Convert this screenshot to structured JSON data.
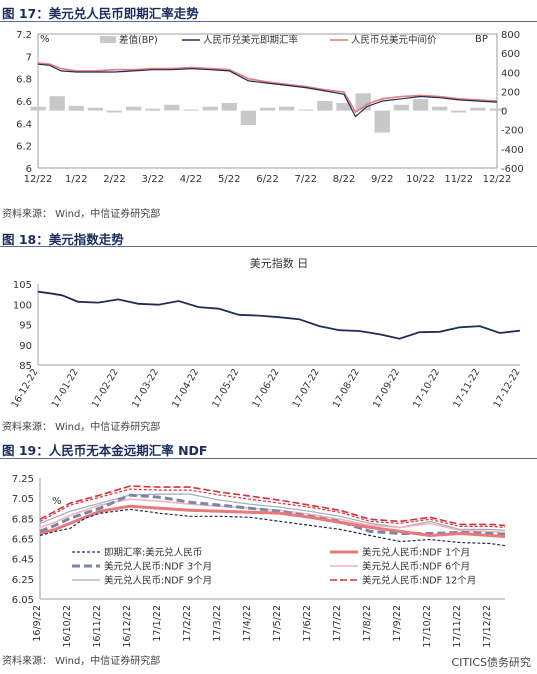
{
  "figures": [
    {
      "title": "图 17：美元兑人民币即期汇率走势",
      "source": "资料来源：  Wind，中信证券研究部"
    },
    {
      "title": "图 18：美元指数走势",
      "source": "资料来源：  Wind，中信证券研究部"
    },
    {
      "title": "图 19：人民币无本金远期汇率 NDF",
      "source": "资料来源：  Wind，中信证券研究部"
    }
  ],
  "watermark": "CITICS债务研究",
  "chart_data": [
    {
      "type": "line",
      "ylabel": "%",
      "y2label": "BP",
      "ylim": [
        6,
        7.2
      ],
      "y2lim": [
        -600,
        800
      ],
      "yticks": [
        "6",
        "6.2",
        "6.4",
        "6.6",
        "6.8",
        "7",
        "7.2"
      ],
      "y2ticks": [
        "-600",
        "-400",
        "-200",
        "0",
        "200",
        "400",
        "600",
        "800"
      ],
      "xticks": [
        "12/22",
        "1/22",
        "2/22",
        "3/22",
        "4/22",
        "5/22",
        "6/22",
        "7/22",
        "8/22",
        "9/22",
        "10/22",
        "11/22",
        "12/22"
      ],
      "legend_position": "top",
      "colors": {
        "spot": "#1f2d5a",
        "mid": "#e8787a",
        "spread": "#c8c8c8"
      },
      "series": [
        {
          "name": "差值(BP)",
          "axis": "right",
          "x": [
            0,
            0.5,
            1,
            1.5,
            2,
            2.5,
            3,
            3.5,
            4,
            4.5,
            5,
            5.5,
            6,
            6.5,
            7,
            7.5,
            8,
            8.5,
            9,
            9.5,
            10,
            10.5,
            11,
            11.5,
            12
          ],
          "values": [
            40,
            150,
            50,
            30,
            -20,
            40,
            20,
            60,
            10,
            40,
            80,
            -150,
            30,
            40,
            10,
            100,
            80,
            180,
            -230,
            60,
            120,
            40,
            -20,
            30,
            20
          ]
        },
        {
          "name": "人民币兑美元即期汇率",
          "axis": "left",
          "x": [
            0,
            0.3,
            0.6,
            1,
            1.5,
            2,
            2.5,
            3,
            3.5,
            4,
            4.5,
            5,
            5.5,
            6,
            6.5,
            7,
            7.5,
            8,
            8.3,
            8.6,
            9,
            9.5,
            10,
            10.5,
            11,
            11.5,
            12
          ],
          "values": [
            6.93,
            6.92,
            6.87,
            6.86,
            6.86,
            6.86,
            6.87,
            6.88,
            6.88,
            6.89,
            6.88,
            6.87,
            6.78,
            6.76,
            6.74,
            6.72,
            6.69,
            6.66,
            6.46,
            6.55,
            6.6,
            6.62,
            6.64,
            6.63,
            6.61,
            6.6,
            6.59
          ]
        },
        {
          "name": "人民币兑美元中间价",
          "axis": "left",
          "x": [
            0,
            0.3,
            0.6,
            1,
            1.5,
            2,
            2.5,
            3,
            3.5,
            4,
            4.5,
            5,
            5.5,
            6,
            6.5,
            7,
            7.5,
            8,
            8.3,
            8.6,
            9,
            9.5,
            10,
            10.5,
            11,
            11.5,
            12
          ],
          "values": [
            6.94,
            6.93,
            6.89,
            6.87,
            6.87,
            6.88,
            6.88,
            6.89,
            6.89,
            6.9,
            6.89,
            6.88,
            6.8,
            6.77,
            6.75,
            6.73,
            6.7,
            6.68,
            6.5,
            6.57,
            6.62,
            6.64,
            6.65,
            6.64,
            6.62,
            6.61,
            6.6
          ]
        }
      ]
    },
    {
      "type": "line",
      "title": "美元指数 日",
      "ylim": [
        85,
        105
      ],
      "yticks": [
        "85",
        "90",
        "95",
        "100",
        "105"
      ],
      "xticks": [
        "16-12-22",
        "17-01-22",
        "17-02-22",
        "17-03-22",
        "17-04-22",
        "17-05-22",
        "17-06-22",
        "17-07-22",
        "17-08-22",
        "17-09-22",
        "17-10-22",
        "17-11-22",
        "17-12-22"
      ],
      "colors": {
        "line": "#1f2d5a"
      },
      "series": [
        {
          "name": "美元指数",
          "x": [
            0,
            0.3,
            0.6,
            1,
            1.5,
            2,
            2.5,
            3,
            3.5,
            4,
            4.5,
            5,
            5.5,
            6,
            6.5,
            7,
            7.5,
            8,
            8.5,
            9,
            9.5,
            10,
            10.5,
            11,
            11.5,
            12
          ],
          "values": [
            103.1,
            102.7,
            102.2,
            100.6,
            100.4,
            101.2,
            100.1,
            99.9,
            100.8,
            99.3,
            98.9,
            97.4,
            97.2,
            96.8,
            96.3,
            94.6,
            93.6,
            93.4,
            92.6,
            91.5,
            93.1,
            93.2,
            94.3,
            94.6,
            92.9,
            93.5
          ]
        }
      ]
    },
    {
      "type": "line",
      "ylim": [
        6.05,
        7.25
      ],
      "yticks": [
        "6.05",
        "6.25",
        "6.45",
        "6.65",
        "6.85",
        "7.05",
        "7.25"
      ],
      "ylabel": "%",
      "xticks": [
        "16/9/22",
        "16/10/22",
        "16/11/22",
        "16/12/22",
        "17/1/22",
        "17/2/22",
        "17/3/22",
        "17/4/22",
        "17/5/22",
        "17/6/22",
        "17/7/22",
        "17/8/22",
        "17/9/22",
        "17/10/22",
        "17/11/22",
        "17/12/22"
      ],
      "legend_position": "bottom-inside",
      "series": [
        {
          "name": "即期汇率:美元兑人民币",
          "color": "#1f2d5a",
          "dash": "3,2",
          "width": 1.2,
          "x": [
            0,
            0.5,
            1,
            1.5,
            2,
            3,
            4,
            5,
            6,
            7,
            8,
            9,
            10,
            11,
            12,
            13,
            14,
            15,
            15.5
          ],
          "values": [
            6.68,
            6.72,
            6.75,
            6.85,
            6.9,
            6.94,
            6.9,
            6.87,
            6.87,
            6.86,
            6.82,
            6.78,
            6.74,
            6.68,
            6.62,
            6.64,
            6.61,
            6.6,
            6.58
          ]
        },
        {
          "name": "美元兑人民币:NDF 3个月",
          "color": "#7a86a6",
          "dash": "8,4",
          "width": 3,
          "x": [
            0,
            0.5,
            1,
            2,
            3,
            4,
            5,
            6,
            7,
            8,
            9,
            10,
            11,
            12,
            13,
            14,
            15,
            15.5
          ],
          "values": [
            6.72,
            6.78,
            6.85,
            6.95,
            7.08,
            7.06,
            7.01,
            6.98,
            6.95,
            6.92,
            6.87,
            6.82,
            6.72,
            6.7,
            6.7,
            6.71,
            6.7,
            6.69
          ]
        },
        {
          "name": "美元兑人民币:NDF 9个月",
          "color": "#a3abc4",
          "dash": "",
          "width": 1.2,
          "x": [
            0,
            0.5,
            1,
            2,
            3,
            4,
            5,
            6,
            7,
            8,
            9,
            10,
            11,
            12,
            13,
            14,
            15,
            15.5
          ],
          "values": [
            6.8,
            6.86,
            6.92,
            7.0,
            7.08,
            7.09,
            7.09,
            7.03,
            6.99,
            6.96,
            6.92,
            6.87,
            6.8,
            6.76,
            6.82,
            6.74,
            6.74,
            6.73
          ]
        },
        {
          "name": "美元兑人民币:NDF 1个月",
          "color": "#e8787a",
          "dash": "",
          "width": 3,
          "x": [
            0,
            0.5,
            1,
            2,
            3,
            4,
            5,
            6,
            7,
            8,
            9,
            10,
            11,
            12,
            13,
            14,
            15,
            15.5
          ],
          "values": [
            6.7,
            6.74,
            6.8,
            6.92,
            6.97,
            6.95,
            6.93,
            6.92,
            6.91,
            6.9,
            6.86,
            6.81,
            6.76,
            6.72,
            6.68,
            6.7,
            6.68,
            6.67
          ]
        },
        {
          "name": "美元兑人民币:NDF 6个月",
          "color": "#f0b6b8",
          "dash": "",
          "width": 1.6,
          "x": [
            0,
            0.5,
            1,
            2,
            3,
            4,
            5,
            6,
            7,
            8,
            9,
            10,
            11,
            12,
            13,
            14,
            15,
            15.5
          ],
          "values": [
            6.76,
            6.81,
            6.88,
            6.98,
            7.04,
            7.02,
            6.99,
            6.97,
            6.95,
            6.93,
            6.89,
            6.84,
            6.78,
            6.76,
            6.8,
            6.73,
            6.72,
            6.71
          ]
        },
        {
          "name": "美元兑人民币:NDF 12个月",
          "color": "#d7303a",
          "dash": "3,2",
          "width": 1.2,
          "x": [
            0,
            0.5,
            1,
            2,
            3,
            4,
            5,
            6,
            7,
            8,
            9,
            10,
            11,
            12,
            13,
            14,
            15,
            15.5
          ],
          "values": [
            6.82,
            6.9,
            6.98,
            7.06,
            7.14,
            7.13,
            7.13,
            7.08,
            7.04,
            7.0,
            6.96,
            6.91,
            6.82,
            6.8,
            6.84,
            6.77,
            6.77,
            6.76
          ]
        },
        {
          "name": "美元兑人民币:NDF 12个月 (2)",
          "color": "#d7303a",
          "dash": "7,3",
          "width": 1.6,
          "x": [
            0,
            0.5,
            1,
            2,
            3,
            4,
            5,
            6,
            7,
            8,
            9,
            10,
            11,
            12,
            13,
            14,
            15,
            15.5
          ],
          "values": [
            6.84,
            6.92,
            7.0,
            7.08,
            7.17,
            7.16,
            7.16,
            7.11,
            7.07,
            7.03,
            6.98,
            6.93,
            6.84,
            6.82,
            6.86,
            6.79,
            6.79,
            6.78
          ]
        }
      ]
    }
  ]
}
